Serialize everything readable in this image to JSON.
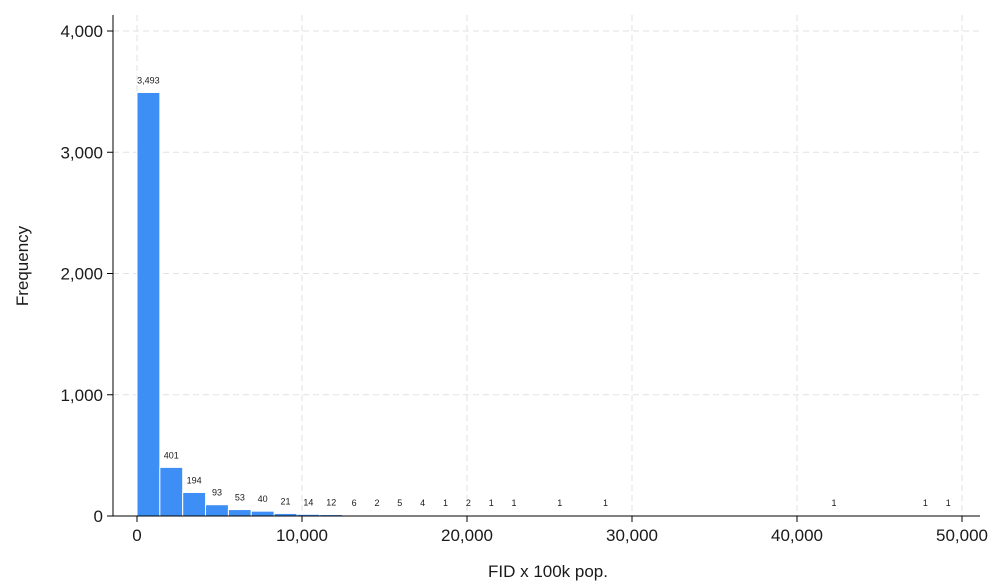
{
  "chart_data": {
    "type": "bar",
    "title": "",
    "xlabel": "FID x 100k pop.",
    "ylabel": "Frequency",
    "xlim": [
      0,
      50000
    ],
    "ylim": [
      0,
      4000
    ],
    "bin_width": 1385,
    "x_ticks": [
      0,
      10000,
      20000,
      30000,
      40000,
      50000
    ],
    "x_tick_labels": [
      "0",
      "10,000",
      "20,000",
      "30,000",
      "40,000",
      "50,000"
    ],
    "y_ticks": [
      0,
      1000,
      2000,
      3000,
      4000
    ],
    "y_tick_labels": [
      "0",
      "1,000",
      "2,000",
      "3,000",
      "4,000"
    ],
    "grid": true,
    "bar_color": "#3d8ef5",
    "bar_edge_color": "#ffffff",
    "bins": [
      {
        "x": 0,
        "value": 3493,
        "label": "3,493"
      },
      {
        "x": 1385,
        "value": 401,
        "label": "401"
      },
      {
        "x": 2770,
        "value": 194,
        "label": "194"
      },
      {
        "x": 4155,
        "value": 93,
        "label": "93"
      },
      {
        "x": 5540,
        "value": 53,
        "label": "53"
      },
      {
        "x": 6925,
        "value": 40,
        "label": "40"
      },
      {
        "x": 8310,
        "value": 21,
        "label": "21"
      },
      {
        "x": 9695,
        "value": 14,
        "label": "14"
      },
      {
        "x": 11080,
        "value": 12,
        "label": "12"
      },
      {
        "x": 12465,
        "value": 6,
        "label": "6"
      },
      {
        "x": 13850,
        "value": 2,
        "label": "2"
      },
      {
        "x": 15235,
        "value": 5,
        "label": "5"
      },
      {
        "x": 16620,
        "value": 4,
        "label": "4"
      },
      {
        "x": 18005,
        "value": 1,
        "label": "1"
      },
      {
        "x": 19390,
        "value": 2,
        "label": "2"
      },
      {
        "x": 20775,
        "value": 1,
        "label": "1"
      },
      {
        "x": 22160,
        "value": 1,
        "label": "1"
      },
      {
        "x": 24930,
        "value": 1,
        "label": "1"
      },
      {
        "x": 27700,
        "value": 1,
        "label": "1"
      },
      {
        "x": 41550,
        "value": 1,
        "label": "1"
      },
      {
        "x": 47090,
        "value": 1,
        "label": "1"
      },
      {
        "x": 48475,
        "value": 1,
        "label": "1"
      }
    ]
  }
}
